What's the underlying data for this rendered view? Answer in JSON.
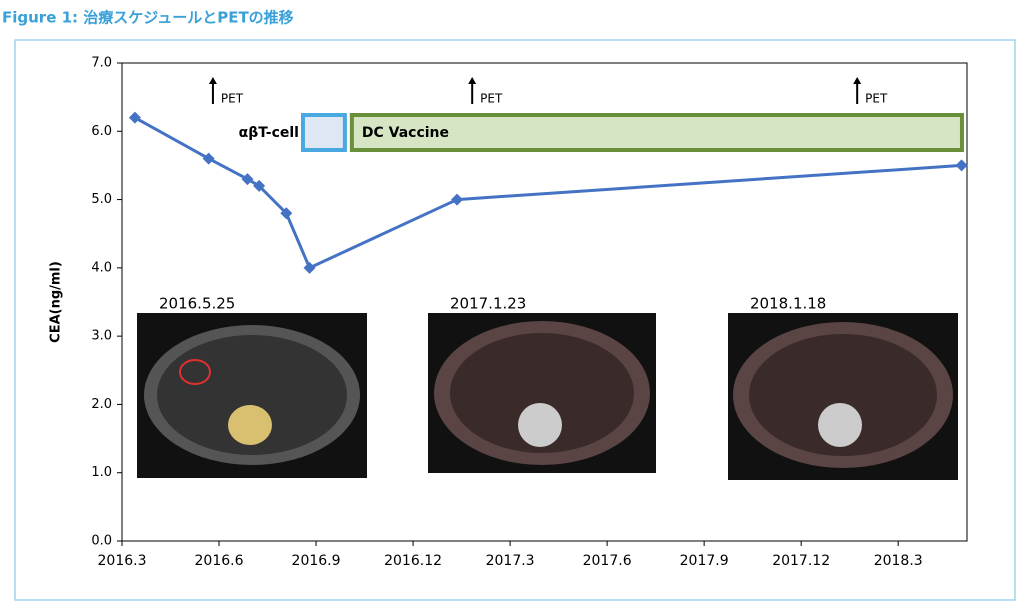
{
  "chart_data": {
    "type": "line",
    "title": "Figure  1:  治療スケジュールとPETの推移",
    "y_label": "CEA(ng/ml)",
    "x": [
      2016.2,
      2016.39,
      2016.49,
      2016.52,
      2016.59,
      2016.65,
      2017.03,
      2018.33
    ],
    "series": [
      {
        "name": "CEA",
        "color": "#4472c4",
        "values": [
          6.2,
          5.6,
          5.3,
          5.2,
          4.8,
          4.0,
          5.0,
          5.5
        ]
      }
    ],
    "xlim": [
      2016.1667,
      2018.344
    ],
    "xticks": [
      {
        "value": 2016.1667,
        "label": "2016.3"
      },
      {
        "value": 2016.4167,
        "label": "2016.6"
      },
      {
        "value": 2016.6667,
        "label": "2016.9"
      },
      {
        "value": 2016.9167,
        "label": "2016.12"
      },
      {
        "value": 2017.1667,
        "label": "2017.3"
      },
      {
        "value": 2017.4167,
        "label": "2017.6"
      },
      {
        "value": 2017.6667,
        "label": "2017.9"
      },
      {
        "value": 2017.9167,
        "label": "2017.12"
      },
      {
        "value": 2018.1667,
        "label": "2018.3"
      }
    ],
    "ylim": [
      0,
      7
    ],
    "yticks": [
      {
        "value": 0,
        "label": "0.0"
      },
      {
        "value": 1,
        "label": "1.0"
      },
      {
        "value": 2,
        "label": "2.0"
      },
      {
        "value": 3,
        "label": "3.0"
      },
      {
        "value": 4,
        "label": "4.0"
      },
      {
        "value": 5,
        "label": "5.0"
      },
      {
        "value": 6,
        "label": "6.0"
      },
      {
        "value": 7,
        "label": "7.0"
      }
    ],
    "pet_markers": [
      {
        "x": 2016.401,
        "label": "PET"
      },
      {
        "x": 2017.069,
        "label": "PET"
      },
      {
        "x": 2018.061,
        "label": "PET"
      }
    ],
    "schedule": [
      {
        "label": "αβT-cell",
        "start": 2016.633,
        "end": 2016.741,
        "color": "#4aa8e0"
      },
      {
        "label": "DC Vaccine",
        "start": 2016.759,
        "end": 2018.331,
        "color": "#6a8f3a"
      }
    ],
    "images": [
      {
        "label": "2016.5.25"
      },
      {
        "label": "2017.1.23"
      },
      {
        "label": "2018.1.18"
      }
    ]
  }
}
